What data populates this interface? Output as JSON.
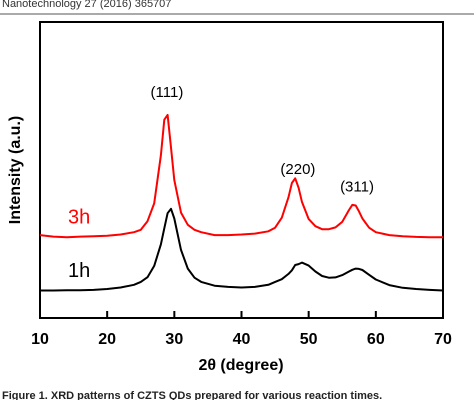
{
  "header": "Nanotechnology 27 (2016) 365707",
  "caption": "Figure 1. XRD patterns of CZTS QDs prepared for various reaction times.",
  "chart_data": {
    "type": "line",
    "xlabel": "2θ (degree)",
    "ylabel": "Intensity (a.u.)",
    "xlim": [
      10,
      70
    ],
    "xticks": [
      10,
      20,
      30,
      40,
      50,
      60,
      70
    ],
    "ylim": [
      0,
      100
    ],
    "x": [
      10,
      12,
      14,
      16,
      18,
      20,
      22,
      24,
      25,
      26,
      27,
      28,
      28.5,
      29,
      29.5,
      30,
      31,
      32,
      33,
      34,
      36,
      38,
      40,
      42,
      44,
      45,
      46,
      47,
      47.5,
      48,
      48.5,
      49,
      50,
      51,
      52,
      53,
      54,
      55,
      56,
      56.5,
      57,
      57.5,
      58,
      59,
      60,
      62,
      64,
      66,
      68,
      70
    ],
    "series": [
      {
        "name": "3h",
        "color": "#ff0000",
        "values": [
          28,
          27.5,
          27.3,
          27.5,
          27.6,
          27.8,
          28.2,
          29,
          29.8,
          32.7,
          38.7,
          55,
          67,
          68.6,
          57.6,
          46.6,
          35.6,
          31.5,
          29.8,
          29,
          28,
          28,
          28.2,
          28.5,
          29.3,
          30.5,
          33.9,
          40.8,
          45.6,
          47.2,
          44,
          39.3,
          33.4,
          31,
          30,
          30,
          30.6,
          32.5,
          36.5,
          38.2,
          38,
          36,
          33.6,
          30.5,
          29,
          28,
          27.6,
          27.4,
          27.3,
          27.3
        ]
      },
      {
        "name": "1h",
        "color": "#000000",
        "values": [
          9.3,
          9.3,
          9.4,
          9.4,
          9.5,
          9.8,
          10.3,
          11.2,
          12.2,
          13.8,
          17.6,
          24.9,
          30.3,
          35.4,
          36.9,
          33.6,
          23,
          16.7,
          13.6,
          12.2,
          10.9,
          10.5,
          10.3,
          10.5,
          11.2,
          12.2,
          13.1,
          14.9,
          16.1,
          17.9,
          18.2,
          18.7,
          17.7,
          15.7,
          14.2,
          13.6,
          13.7,
          14.5,
          15.7,
          16.3,
          16.7,
          16.6,
          16.2,
          14.6,
          13,
          11.1,
          10.2,
          9.8,
          9.5,
          9.3
        ]
      }
    ],
    "annotations": [
      {
        "text": "(111)",
        "x": 28.9,
        "y": 76
      },
      {
        "text": "(220)",
        "x": 48.4,
        "y": 50
      },
      {
        "text": "(311)",
        "x": 57.2,
        "y": 44
      }
    ]
  }
}
